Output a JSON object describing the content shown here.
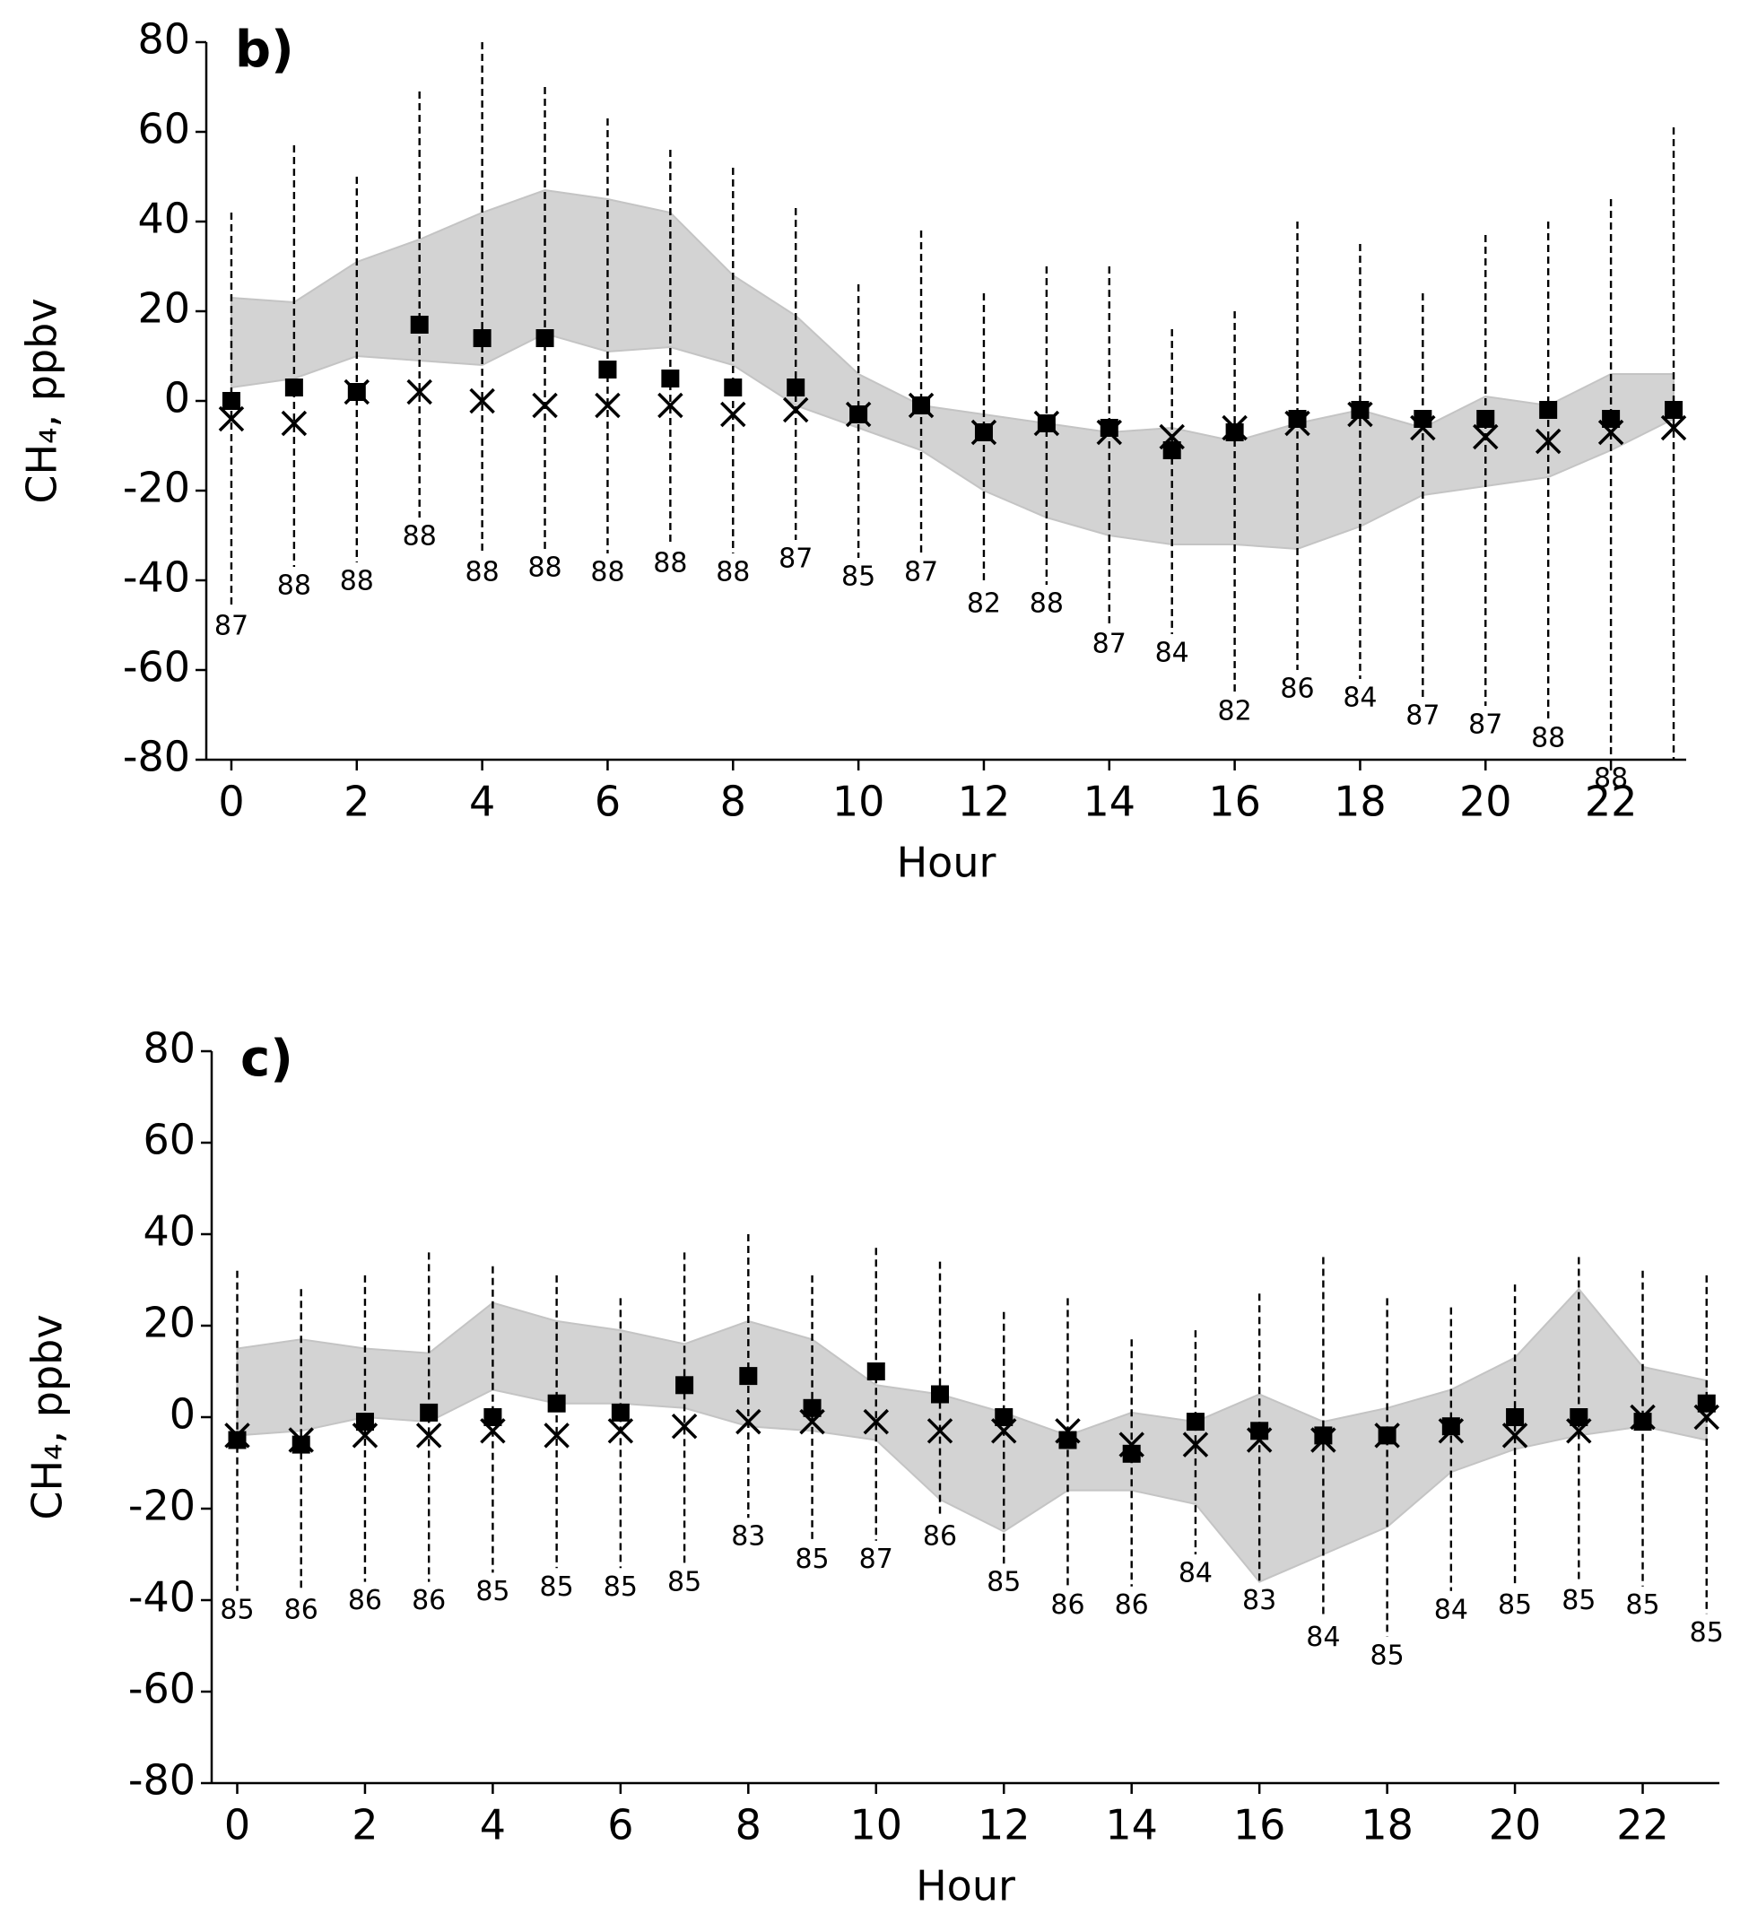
{
  "chart_data": [
    {
      "type": "errorband",
      "title": "b)",
      "y_label": "CH₄, ppbv",
      "x_label": "Hour",
      "x": [
        0,
        1,
        2,
        3,
        4,
        5,
        6,
        7,
        8,
        9,
        10,
        11,
        12,
        13,
        14,
        15,
        16,
        17,
        18,
        19,
        20,
        21,
        22,
        23
      ],
      "mean": {
        "color": "#000000",
        "values": [
          0,
          3,
          2,
          17,
          14,
          14,
          7,
          5,
          3,
          3,
          -3,
          -1,
          -7,
          -5,
          -6,
          -11,
          -7,
          -4,
          -2,
          -4,
          -4,
          -2,
          -4,
          -2
        ]
      },
      "median": {
        "color": "#000000",
        "values": [
          -4,
          -5,
          2,
          2,
          0,
          -1,
          -1,
          -1,
          -3,
          -2,
          -3,
          -1,
          -7,
          -5,
          -7,
          -8,
          -6,
          -5,
          -3,
          -6,
          -8,
          -9,
          -7,
          -6
        ]
      },
      "band": {
        "color": "#d3d3d3",
        "low": [
          3,
          5,
          10,
          9,
          8,
          15,
          11,
          12,
          8,
          -1,
          -6,
          -11,
          -20,
          -26,
          -30,
          -32,
          -32,
          -33,
          -28,
          -21,
          -19,
          -17,
          -11,
          -4
        ],
        "high": [
          23,
          22,
          31,
          36,
          42,
          47,
          45,
          42,
          28,
          19,
          6,
          -1,
          -3,
          -5,
          -7,
          -6,
          -9,
          -5,
          -2,
          -6,
          1,
          -1,
          6,
          6
        ]
      },
      "whisker": {
        "low": [
          -46,
          -37,
          -36,
          -26,
          -34,
          -33,
          -34,
          -32,
          -34,
          -31,
          -35,
          -34,
          -41,
          -41,
          -50,
          -52,
          -65,
          -60,
          -62,
          -66,
          -68,
          -71,
          -80,
          -80
        ],
        "high": [
          42,
          57,
          50,
          69,
          80,
          70,
          63,
          56,
          52,
          43,
          26,
          38,
          24,
          30,
          30,
          16,
          20,
          40,
          35,
          24,
          37,
          40,
          45,
          61
        ]
      },
      "counts": [
        87,
        88,
        88,
        88,
        88,
        88,
        88,
        88,
        88,
        87,
        85,
        87,
        82,
        88,
        87,
        84,
        82,
        86,
        84,
        87,
        87,
        88,
        88,
        null
      ],
      "xlim": [
        -0.4,
        23.2
      ],
      "xticks": [
        0,
        2,
        4,
        6,
        8,
        10,
        12,
        14,
        16,
        18,
        20,
        22
      ],
      "ylim": [
        -80,
        80
      ],
      "yticks": [
        -80,
        -60,
        -40,
        -20,
        0,
        20,
        40,
        60,
        80
      ]
    },
    {
      "type": "errorband",
      "title": "c)",
      "y_label": "CH₄, ppbv",
      "x_label": "Hour",
      "x": [
        0,
        1,
        2,
        3,
        4,
        5,
        6,
        7,
        8,
        9,
        10,
        11,
        12,
        13,
        14,
        15,
        16,
        17,
        18,
        19,
        20,
        21,
        22,
        23
      ],
      "mean": {
        "color": "#000000",
        "values": [
          -5,
          -6,
          -1,
          1,
          0,
          3,
          1,
          7,
          9,
          2,
          10,
          5,
          0,
          -5,
          -8,
          -1,
          -3,
          -4,
          -4,
          -2,
          0,
          0,
          -1,
          3
        ]
      },
      "median": {
        "color": "#000000",
        "values": [
          -4,
          -5,
          -4,
          -4,
          -3,
          -4,
          -3,
          -2,
          -1,
          -1,
          -1,
          -3,
          -3,
          -3,
          -6,
          -6,
          -5,
          -5,
          -4,
          -3,
          -4,
          -3,
          0,
          0
        ]
      },
      "band": {
        "color": "#d3d3d3",
        "low": [
          -4,
          -3,
          0,
          -1,
          6,
          3,
          3,
          2,
          -2,
          -3,
          -5,
          -18,
          -25,
          -16,
          -16,
          -19,
          -36,
          -30,
          -24,
          -12,
          -7,
          -4,
          -2,
          -5
        ],
        "high": [
          15,
          17,
          15,
          14,
          25,
          21,
          19,
          16,
          21,
          17,
          7,
          5,
          1,
          -4,
          1,
          -1,
          5,
          -1,
          2,
          6,
          13,
          28,
          11,
          8
        ]
      },
      "whisker": {
        "low": [
          -38,
          -38,
          -36,
          -36,
          -34,
          -33,
          -33,
          -32,
          -22,
          -27,
          -27,
          -22,
          -32,
          -37,
          -37,
          -30,
          -36,
          -44,
          -48,
          -38,
          -37,
          -36,
          -37,
          -43
        ],
        "high": [
          32,
          28,
          31,
          36,
          33,
          31,
          26,
          36,
          40,
          31,
          37,
          34,
          23,
          26,
          17,
          19,
          27,
          35,
          26,
          24,
          29,
          35,
          32,
          31
        ]
      },
      "counts": [
        85,
        86,
        86,
        86,
        85,
        85,
        85,
        85,
        83,
        85,
        87,
        86,
        85,
        86,
        86,
        84,
        83,
        84,
        85,
        84,
        85,
        85,
        85,
        85
      ],
      "xlim": [
        -0.4,
        23.2
      ],
      "xticks": [
        0,
        2,
        4,
        6,
        8,
        10,
        12,
        14,
        16,
        18,
        20,
        22
      ],
      "ylim": [
        -80,
        80
      ],
      "yticks": [
        -80,
        -60,
        -40,
        -20,
        0,
        20,
        40,
        60,
        80
      ]
    }
  ]
}
